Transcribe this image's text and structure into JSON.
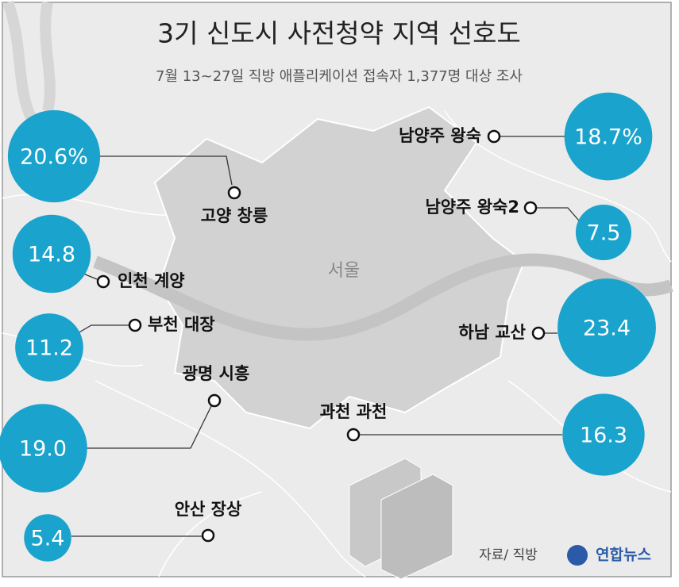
{
  "chart_data": {
    "type": "bubble-map",
    "title": "3기 신도시 사전청약 지역 선호도",
    "subtitle": "7월 13~27일 직방 애플리케이션 접속자 1,377명 대상 조사",
    "center_label": "서울",
    "categories": [
      "고양 창릉",
      "인천 계양",
      "부천 대장",
      "광명 시흥",
      "안산 장상",
      "남양주 왕숙",
      "남양주 왕숙2",
      "하남 교산",
      "과천 과천"
    ],
    "values": [
      20.6,
      14.8,
      11.2,
      19.0,
      5.4,
      18.7,
      7.5,
      23.4,
      16.3
    ],
    "value_labels": [
      "20.6%",
      "14.8",
      "11.2",
      "19.0",
      "5.4",
      "18.7%",
      "7.5",
      "23.4",
      "16.3"
    ],
    "color": "#1aa3cc",
    "source": "자료/ 직방",
    "credit": "연합뉴스"
  }
}
